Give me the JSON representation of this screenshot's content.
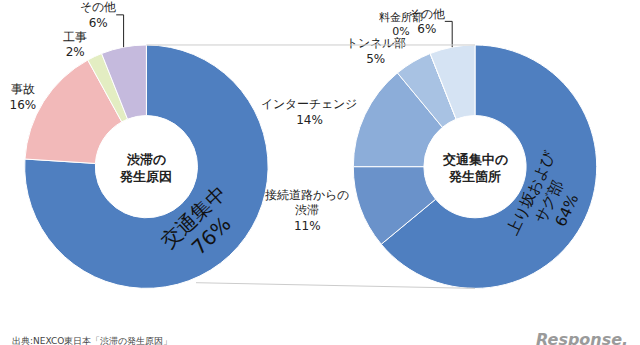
{
  "source": "出典:NEXCO東日本「渋滞の発生原因」",
  "watermark": "Response.",
  "chart_data": [
    {
      "type": "pie",
      "title": "渋滞の\n発生原因",
      "categories": [
        "交通集中",
        "事故",
        "工事",
        "その他"
      ],
      "values": [
        76,
        16,
        2,
        6
      ],
      "value_labels": [
        "76%",
        "16%",
        "2%",
        "6%"
      ],
      "colors": [
        "#4f7fc0",
        "#f2b9b9",
        "#e3edc2",
        "#c5badd"
      ],
      "data_labels": true
    },
    {
      "type": "pie",
      "title": "交通集中の\n発生箇所",
      "categories": [
        "上り坂および\nサグ部",
        "接続道路からの\n渋滞",
        "インターチェンジ",
        "トンネル部",
        "料金所部",
        "その他"
      ],
      "values": [
        64,
        11,
        14,
        5,
        0,
        6
      ],
      "value_labels": [
        "64%",
        "11%",
        "14%",
        "5%",
        "0%",
        "6%"
      ],
      "colors": [
        "#4f7fc0",
        "#6a92ca",
        "#8cadd9",
        "#a8c2e3",
        "#bfd2eb",
        "#d5e3f3"
      ],
      "data_labels": true
    }
  ]
}
